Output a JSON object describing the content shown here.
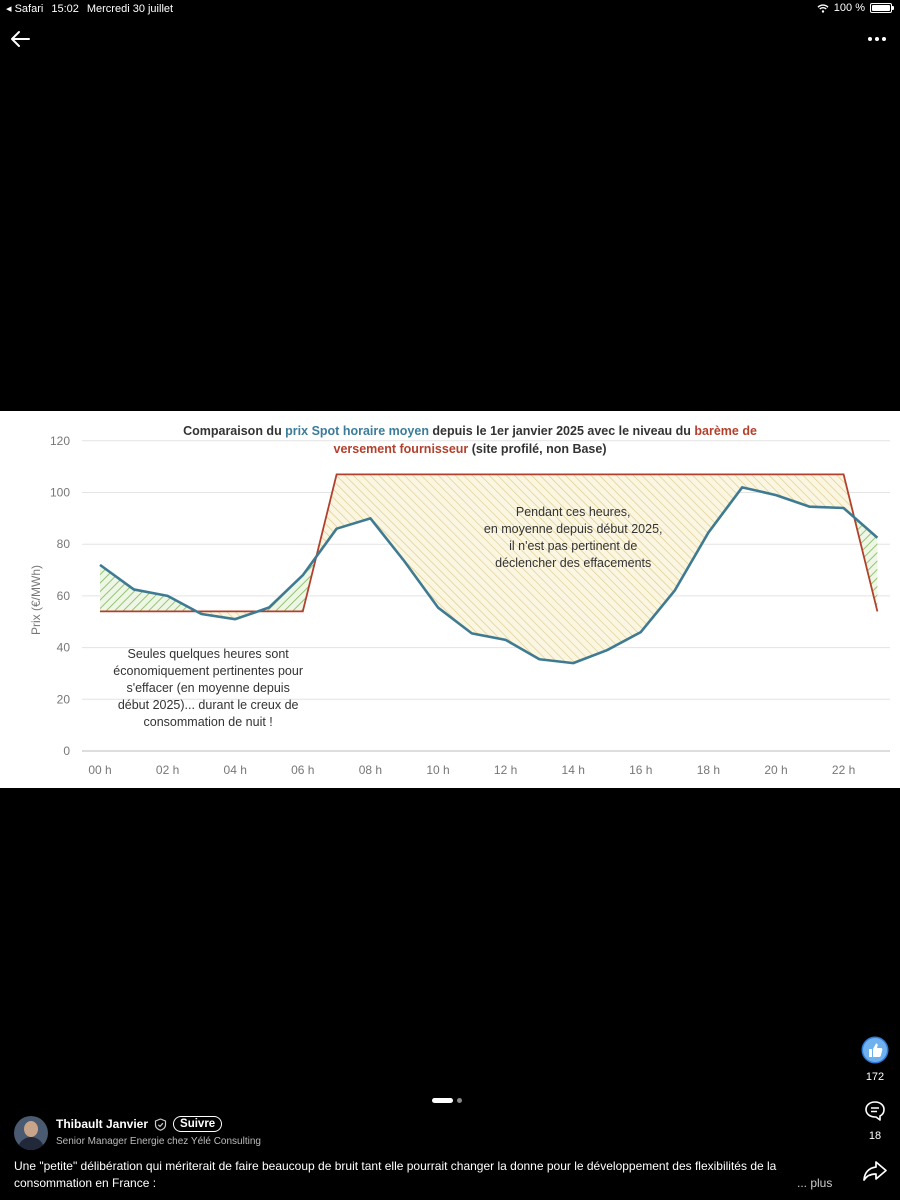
{
  "status_bar": {
    "app": "Safari",
    "time": "15:02",
    "date": "Mercredi 30 juillet",
    "battery": "100 %"
  },
  "icons": {
    "back": "arrow-left-icon",
    "more": "more-horizontal-icon",
    "like": "thumbs-up-icon",
    "comment": "comment-icon",
    "share": "share-icon",
    "wifi": "wifi-icon",
    "battery": "battery-icon"
  },
  "chart_data": {
    "type": "line",
    "title_parts": [
      "Comparaison du ",
      "prix Spot horaire moyen",
      " depuis le 1er janvier 2025 avec le niveau du ",
      "barème de versement fournisseur",
      " (site profilé, non Base)"
    ],
    "ylabel": "Prix (€/MWh)",
    "ylim": [
      0,
      120
    ],
    "yticks": [
      0,
      20,
      40,
      60,
      80,
      100,
      120
    ],
    "x": [
      0,
      1,
      2,
      3,
      4,
      5,
      6,
      7,
      8,
      9,
      10,
      11,
      12,
      13,
      14,
      15,
      16,
      17,
      18,
      19,
      20,
      21,
      22,
      23
    ],
    "xticks": [
      0,
      2,
      4,
      6,
      8,
      10,
      12,
      14,
      16,
      18,
      20,
      22
    ],
    "xtick_labels": [
      "00 h",
      "02 h",
      "04 h",
      "06 h",
      "08 h",
      "10 h",
      "12 h",
      "14 h",
      "16 h",
      "18 h",
      "20 h",
      "22 h"
    ],
    "grid": true,
    "series": [
      {
        "values": [
          72,
          62.5,
          60,
          53,
          51,
          55.5,
          68,
          86,
          90,
          73.5,
          55.5,
          45.5,
          43,
          35.5,
          34,
          39,
          46,
          62,
          84.5,
          102,
          99,
          94.5,
          94,
          82.5
        ],
        "color": "#3e7b93"
      },
      {
        "points": [
          [
            0,
            54
          ],
          [
            6,
            54
          ],
          [
            7,
            107
          ],
          [
            22,
            107
          ],
          [
            23,
            54
          ]
        ],
        "color": "#b3402c"
      }
    ],
    "annotations": [
      {
        "x": 14,
        "lines": [
          "Pendant ces heures,",
          "en moyenne depuis début 2025,",
          "il n'est pas pertinent de",
          "déclencher des effacements"
        ]
      },
      {
        "x": 3.2,
        "lines": [
          "Seules quelques heures sont",
          "économiquement pertinentes pour",
          "s'effacer (en moyenne depuis",
          "début 2025)... durant le creux de",
          "consommation de nuit !"
        ]
      }
    ],
    "colors": {
      "spot": "#3e7b93",
      "bareme": "#b3402c",
      "green_hatch": "#7fb65a",
      "yellow_hatch": "#d9c47a"
    }
  },
  "carousel": {
    "total": 2,
    "active": 0
  },
  "actions": {
    "likes": "172",
    "comments": "18"
  },
  "author": {
    "name": "Thibault Janvier",
    "follow_label": "Suivre",
    "subtitle": "Senior Manager Energie chez Yélé Consulting"
  },
  "caption": {
    "text": "Une \"petite\" délibération qui mériterait de faire beaucoup de bruit tant elle pourrait changer la donne pour le développement des flexibilités de la consommation en France :",
    "more_label": "... plus"
  }
}
